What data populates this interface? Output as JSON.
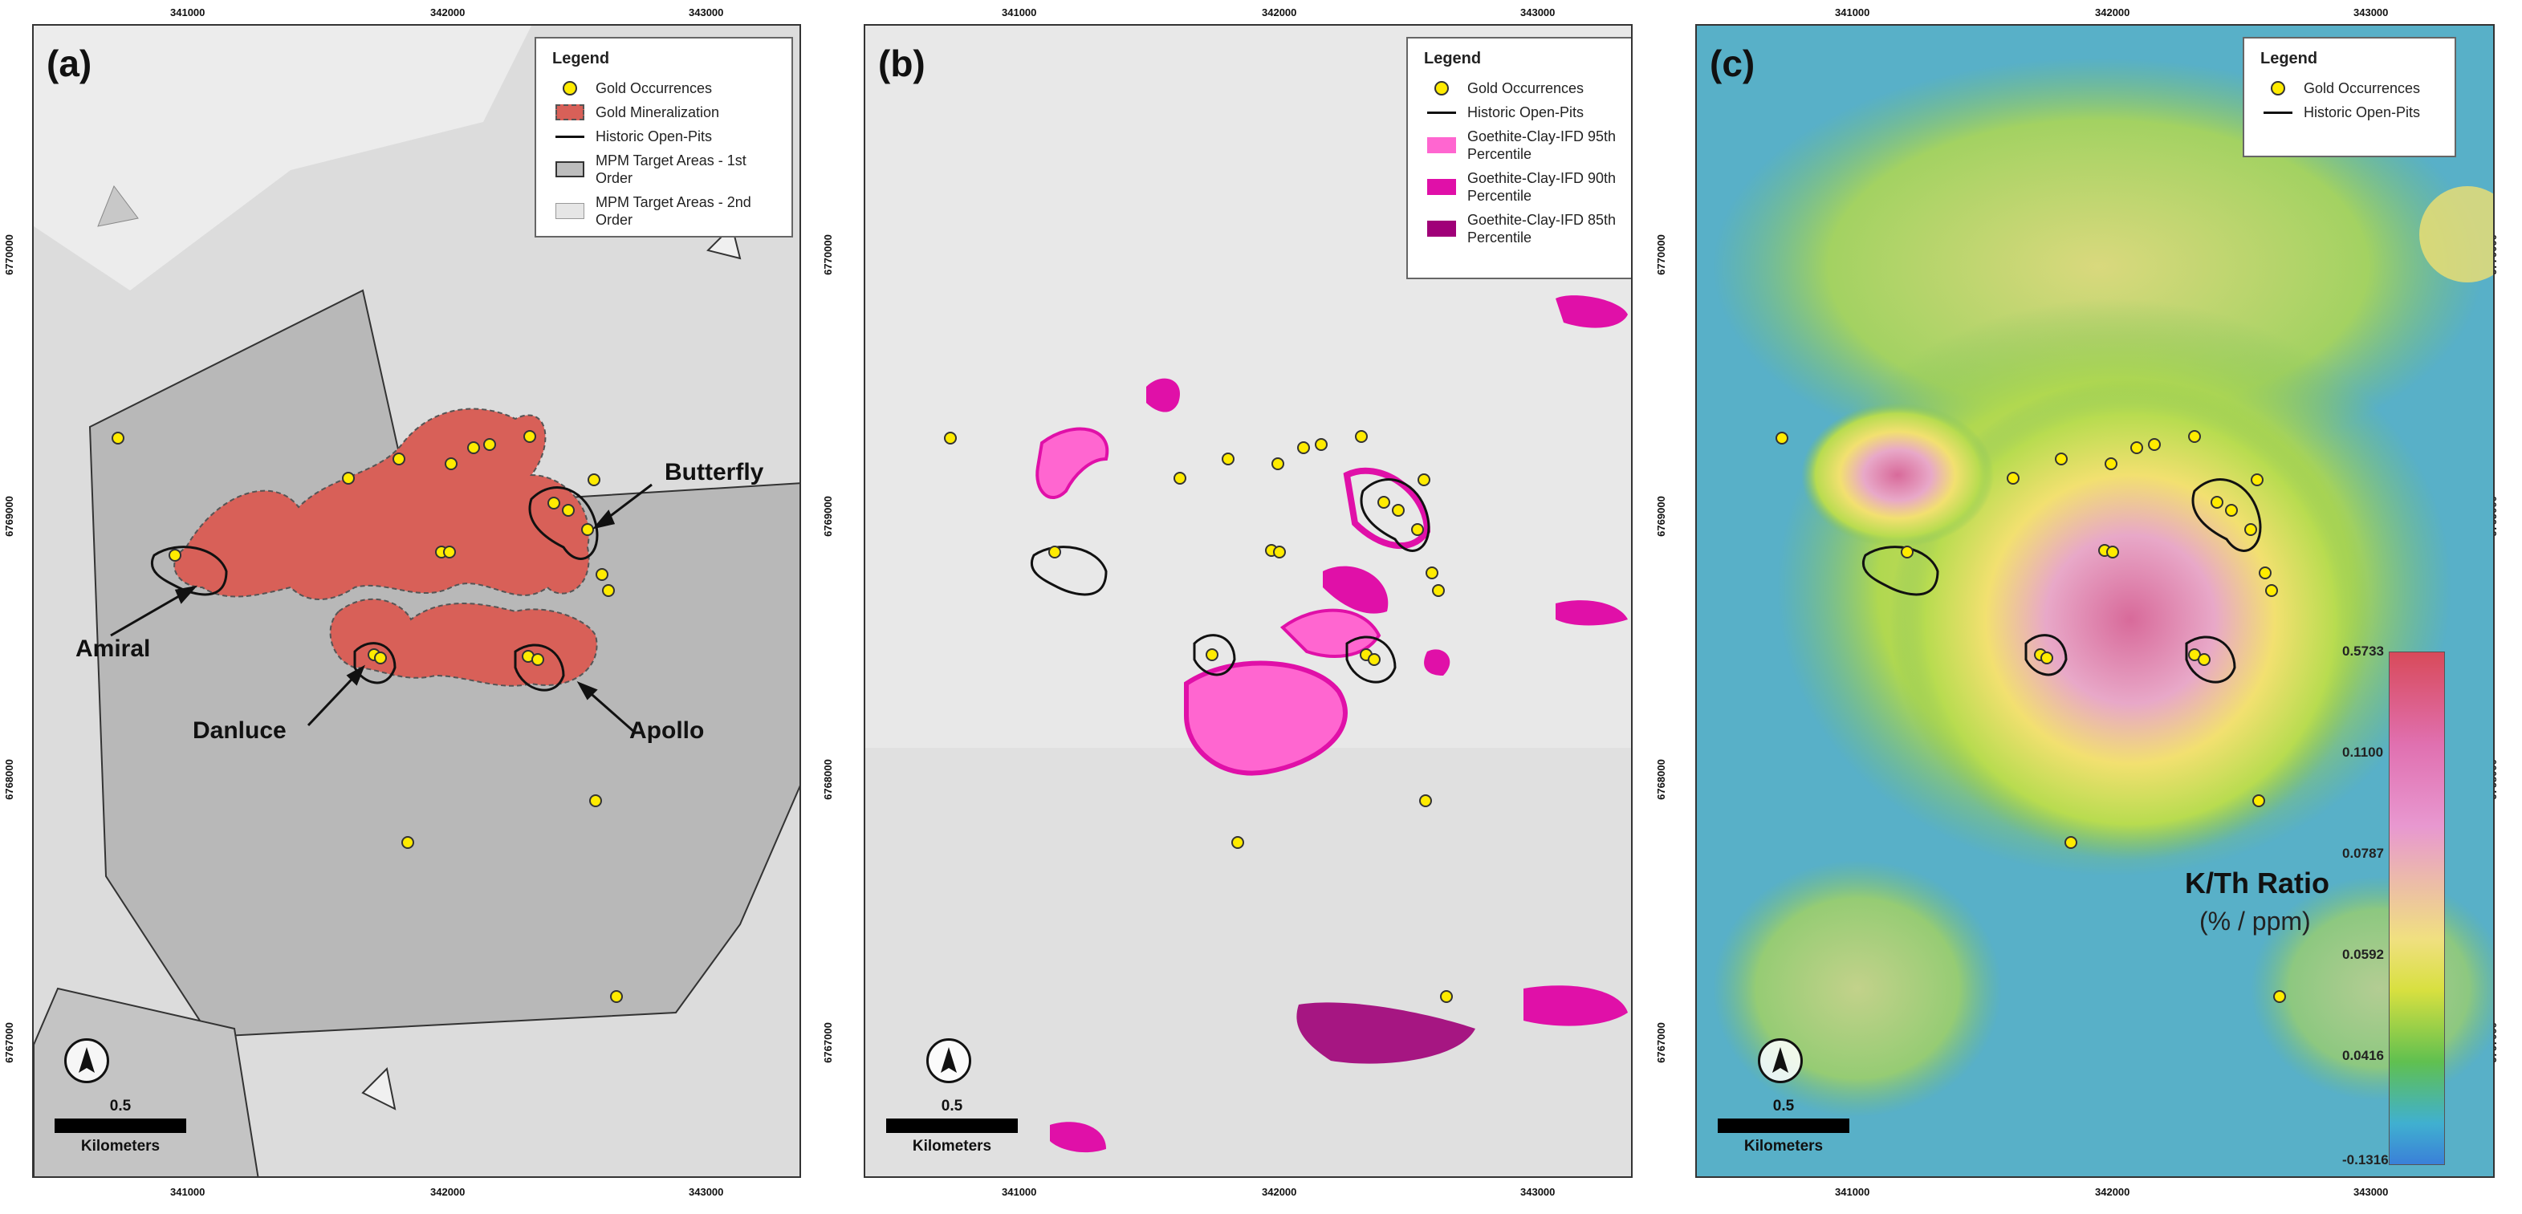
{
  "panels": [
    {
      "label": "(a)",
      "legend": {
        "title": "Legend",
        "items": [
          {
            "label": "Gold Occurrences",
            "symbol": "dot",
            "color": "#ffeb00"
          },
          {
            "label": "Gold Mineralization",
            "symbol": "box",
            "color": "#d86058"
          },
          {
            "label": "Historic Open-Pits",
            "symbol": "line",
            "color": "#111111"
          },
          {
            "label": "MPM Target Areas - 1st Order",
            "symbol": "box",
            "color": "#bdbdbd"
          },
          {
            "label": "MPM Target Areas - 2nd Order",
            "symbol": "box",
            "color": "#e6e6e6"
          }
        ]
      },
      "callouts": [
        "Butterfly",
        "Amiral",
        "Danluce",
        "Apollo"
      ]
    },
    {
      "label": "(b)",
      "legend": {
        "title": "Legend",
        "items": [
          {
            "label": "Gold Occurrences",
            "symbol": "dot",
            "color": "#ffeb00"
          },
          {
            "label": "Historic Open-Pits",
            "symbol": "line",
            "color": "#111111"
          },
          {
            "label": "Goethite-Clay-IFD 95th Percentile",
            "symbol": "box",
            "color": "#ff66d0"
          },
          {
            "label": "Goethite-Clay-IFD 90th Percentile",
            "symbol": "box",
            "color": "#e010a8"
          },
          {
            "label": "Goethite-Clay-IFD 85th Percentile",
            "symbol": "box",
            "color": "#a00078"
          }
        ]
      }
    },
    {
      "label": "(c)",
      "legend": {
        "title": "Legend",
        "items": [
          {
            "label": "Gold Occurrences",
            "symbol": "dot",
            "color": "#ffeb00"
          },
          {
            "label": "Historic Open-Pits",
            "symbol": "line",
            "color": "#111111"
          }
        ]
      },
      "colorbar": {
        "title": "K/Th Ratio",
        "unit": "(% / ppm)",
        "ticks": [
          "0.5733",
          "0.1100",
          "0.0787",
          "0.0592",
          "0.0416",
          "-0.1316"
        ]
      }
    }
  ],
  "grid_labels": {
    "easting": [
      "341000",
      "342000",
      "343000"
    ],
    "northing": [
      "6770000",
      "6769000",
      "6768000",
      "6767000"
    ]
  },
  "scale_bar": {
    "value": "0.5",
    "unit": "Kilometers"
  }
}
